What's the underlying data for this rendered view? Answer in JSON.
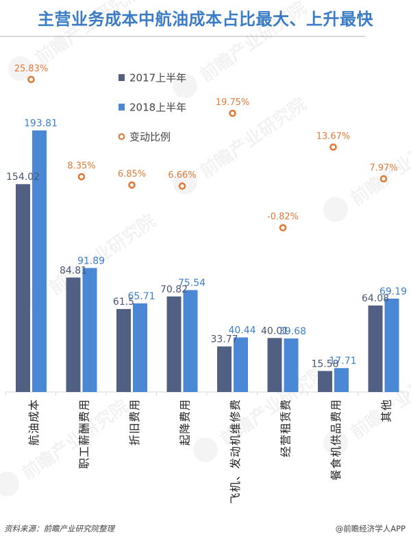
{
  "title": "主营业务成本中航油成本占比最大、上升最快",
  "footer": {
    "source": "资料来源：前瞻产业研究院整理",
    "credit": "@前瞻经济学人APP"
  },
  "watermark": "前瞻产业研究院",
  "colors": {
    "series_2017": "#515f82",
    "series_2018": "#4a88d6",
    "label_2017": "#4a5570",
    "label_2018": "#3f7fcf",
    "change": "#e07b39",
    "title": "#3b7cc6"
  },
  "legend": [
    {
      "label": "2017上半年",
      "type": "square",
      "color": "#515f82"
    },
    {
      "label": "2018上半年",
      "type": "square",
      "color": "#4a88d6"
    },
    {
      "label": "变动比例",
      "type": "circle",
      "color": "#e07b39"
    }
  ],
  "chart_data": {
    "type": "bar",
    "title": "主营业务成本中航油成本占比最大、上升最快",
    "xlabel": "",
    "ylabel": "",
    "grid": false,
    "legend_position": "upper-left-inside",
    "categories": [
      "航油成本",
      "职工薪酬费用",
      "折旧费用",
      "起降费用",
      "飞机、发动机维修费",
      "经营租赁费",
      "餐食机供品费用",
      "其他"
    ],
    "series": [
      {
        "name": "2017上半年",
        "type": "bar",
        "values": [
          154.02,
          84.81,
          61.5,
          70.82,
          33.77,
          40.01,
          15.58,
          64.08
        ],
        "labels": [
          "154.02",
          "84.81",
          "61.5",
          "70.82",
          "33.77",
          "40.01",
          "15.58",
          "64.08"
        ]
      },
      {
        "name": "2018上半年",
        "type": "bar",
        "values": [
          193.81,
          91.89,
          65.71,
          75.54,
          40.44,
          39.68,
          17.71,
          69.19
        ],
        "labels": [
          "193.81",
          "91.89",
          "65.71",
          "75.54",
          "40.44",
          "39.68",
          "17.71",
          "69.19"
        ]
      },
      {
        "name": "变动比例",
        "type": "line-markers",
        "axis": "secondary",
        "unit": "%",
        "values": [
          25.83,
          8.35,
          6.85,
          6.66,
          19.75,
          -0.82,
          13.67,
          7.97
        ],
        "labels": [
          "25.83%",
          "8.35%",
          "6.85%",
          "6.66%",
          "19.75%",
          "-0.82%",
          "13.67%",
          "7.97%"
        ]
      }
    ],
    "ylim": [
      0,
      200
    ],
    "y2lim": [
      -5,
      30
    ]
  }
}
